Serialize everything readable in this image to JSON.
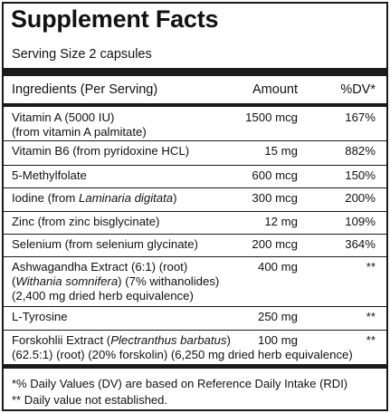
{
  "title": "Supplement Facts",
  "serving_size": "Serving Size 2 capsules",
  "header": {
    "ingredients": "Ingredients (Per Serving)",
    "amount": "Amount",
    "dv": "%DV*"
  },
  "rows": [
    {
      "lines": [
        [
          {
            "t": "Vitamin A (5000 IU)"
          }
        ],
        [
          {
            "t": "(from vitamin A palmitate)"
          }
        ]
      ],
      "amount": "1500 mcg",
      "dv": "167%"
    },
    {
      "lines": [
        [
          {
            "t": "Vitamin B6 (from pyridoxine HCL)"
          }
        ]
      ],
      "amount": "15 mg",
      "dv": "882%"
    },
    {
      "lines": [
        [
          {
            "t": "5-Methylfolate"
          }
        ]
      ],
      "amount": "600 mcg",
      "dv": "150%"
    },
    {
      "lines": [
        [
          {
            "t": "Iodine (from "
          },
          {
            "t": "Laminaria digitata",
            "i": true
          },
          {
            "t": ")"
          }
        ]
      ],
      "amount": "300 mcg",
      "dv": "200%"
    },
    {
      "lines": [
        [
          {
            "t": "Zinc (from zinc bisglycinate)"
          }
        ]
      ],
      "amount": "12 mg",
      "dv": "109%"
    },
    {
      "lines": [
        [
          {
            "t": "Selenium (from selenium glycinate)"
          }
        ]
      ],
      "amount": "200 mcg",
      "dv": "364%"
    },
    {
      "lines": [
        [
          {
            "t": "Ashwagandha Extract (6:1) (root)"
          }
        ],
        [
          {
            "t": "("
          },
          {
            "t": "Withania somnifera",
            "i": true
          },
          {
            "t": ") (7% withanolides)"
          }
        ],
        [
          {
            "t": "(2,400 mg dried herb equivalence)"
          }
        ]
      ],
      "amount": "400 mg",
      "dv": "**"
    },
    {
      "lines": [
        [
          {
            "t": "L-Tyrosine"
          }
        ]
      ],
      "amount": "250 mg",
      "dv": "**"
    },
    {
      "lines": [
        [
          {
            "t": "Forskohlii Extract ("
          },
          {
            "t": "Plectranthus barbatus",
            "i": true
          },
          {
            "t": ")"
          }
        ],
        [
          {
            "t": "(62.5:1) (root) (20% forskolin) (6,250 mg dried herb equivalence)"
          }
        ]
      ],
      "amount": "100 mg",
      "dv": "**"
    }
  ],
  "footnotes": [
    "*% Daily Values (DV) are based on Reference Daily Intake (RDI)",
    "** Daily value not established."
  ]
}
